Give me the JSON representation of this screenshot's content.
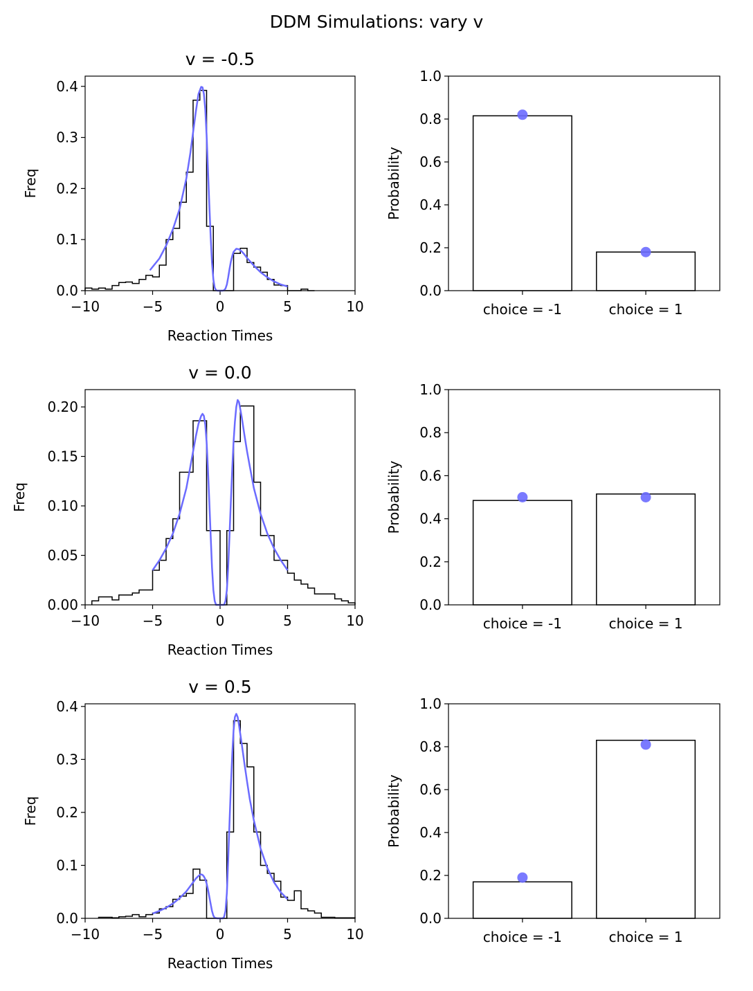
{
  "figure": {
    "title": "DDM Simulations: vary v"
  },
  "chart_data": [
    {
      "type": "histogram",
      "title": "v = -0.5",
      "xlabel": "Reaction Times",
      "ylabel": "Freq",
      "xlim": [
        -10,
        10
      ],
      "ylim": [
        0,
        0.42
      ],
      "xticks": [
        -10,
        -5,
        0,
        5,
        10
      ],
      "yticks": [
        0.0,
        0.1,
        0.2,
        0.3,
        0.4
      ],
      "ytick_labels": [
        "0.0",
        "0.1",
        "0.2",
        "0.3",
        "0.4"
      ],
      "histogram": {
        "edges": [
          -10.0,
          -9.5,
          -9.0,
          -8.5,
          -8.0,
          -7.5,
          -7.0,
          -6.5,
          -6.0,
          -5.5,
          -5.0,
          -4.5,
          -4.0,
          -3.5,
          -3.0,
          -2.5,
          -2.0,
          -1.5,
          -1.0,
          -0.5,
          0.0,
          0.5,
          1.0,
          1.5,
          2.0,
          2.5,
          3.0,
          3.5,
          4.0,
          4.5,
          5.0,
          5.5,
          6.0,
          6.5,
          7.0
        ],
        "counts": [
          0.005,
          0.003,
          0.005,
          0.003,
          0.01,
          0.016,
          0.017,
          0.014,
          0.022,
          0.03,
          0.027,
          0.05,
          0.1,
          0.122,
          0.173,
          0.232,
          0.373,
          0.392,
          0.126,
          0.0,
          0.0,
          0.0,
          0.073,
          0.083,
          0.055,
          0.046,
          0.036,
          0.022,
          0.011,
          0.01,
          0.0,
          0.0,
          0.003,
          0.0
        ]
      },
      "density_curve": {
        "x": [
          -5.2,
          -4.5,
          -4.0,
          -3.5,
          -3.0,
          -2.5,
          -2.2,
          -2.0,
          -1.8,
          -1.6,
          -1.4,
          -1.3,
          -1.2,
          -1.1,
          -1.0,
          -0.9,
          -0.8,
          -0.7,
          -0.6,
          -0.5,
          -0.4,
          -0.3,
          -0.2,
          -0.1,
          0.0,
          0.1,
          0.2,
          0.3,
          0.4,
          0.5,
          0.6,
          0.7,
          0.8,
          0.9,
          1.0,
          1.2,
          1.4,
          1.6,
          1.8,
          2.0,
          2.5,
          3.0,
          3.5,
          4.0,
          4.5,
          5.0
        ],
        "y": [
          0.04,
          0.063,
          0.088,
          0.12,
          0.16,
          0.22,
          0.27,
          0.31,
          0.35,
          0.385,
          0.399,
          0.398,
          0.385,
          0.355,
          0.305,
          0.24,
          0.17,
          0.105,
          0.055,
          0.022,
          0.006,
          0.001,
          0.0,
          0.0,
          0.0,
          0.0,
          0.0,
          0.001,
          0.004,
          0.012,
          0.026,
          0.042,
          0.057,
          0.068,
          0.076,
          0.082,
          0.081,
          0.077,
          0.071,
          0.064,
          0.049,
          0.036,
          0.026,
          0.018,
          0.012,
          0.008
        ]
      },
      "curve_color": "#6b6bff"
    },
    {
      "type": "bar",
      "xlabel": "",
      "ylabel": "Probability",
      "ylim": [
        0,
        1.0
      ],
      "yticks": [
        0.0,
        0.2,
        0.4,
        0.6,
        0.8,
        1.0
      ],
      "ytick_labels": [
        "0.0",
        "0.2",
        "0.4",
        "0.6",
        "0.8",
        "1.0"
      ],
      "categories": [
        "choice = -1",
        "choice = 1"
      ],
      "values": [
        0.815,
        0.18
      ],
      "points": [
        0.82,
        0.18
      ],
      "point_color": "#6b6bff"
    },
    {
      "type": "histogram",
      "title": "v = 0.0",
      "xlabel": "Reaction Times",
      "ylabel": "Freq",
      "xlim": [
        -10,
        10
      ],
      "ylim": [
        0,
        0.2175
      ],
      "xticks": [
        -10,
        -5,
        0,
        5,
        10
      ],
      "yticks": [
        0.0,
        0.05,
        0.1,
        0.15,
        0.2
      ],
      "ytick_labels": [
        "0.00",
        "0.05",
        "0.10",
        "0.15",
        "0.20"
      ],
      "histogram": {
        "edges": [
          -9.5,
          -9.0,
          -8.5,
          -8.0,
          -7.5,
          -7.0,
          -6.5,
          -6.0,
          -5.5,
          -5.0,
          -4.5,
          -4.0,
          -3.5,
          -3.0,
          -2.5,
          -2.0,
          -1.5,
          -1.0,
          -0.5,
          0.0,
          0.5,
          1.0,
          1.5,
          2.0,
          2.5,
          3.0,
          3.5,
          4.0,
          4.5,
          5.0,
          5.5,
          6.0,
          6.5,
          7.0,
          7.5,
          8.0,
          8.5,
          9.0,
          9.5,
          10.0
        ],
        "counts": [
          0.004,
          0.008,
          0.008,
          0.005,
          0.01,
          0.01,
          0.012,
          0.015,
          0.015,
          0.035,
          0.045,
          0.067,
          0.087,
          0.134,
          0.134,
          0.186,
          0.186,
          0.075,
          0.075,
          0.0,
          0.075,
          0.165,
          0.201,
          0.201,
          0.124,
          0.07,
          0.07,
          0.045,
          0.045,
          0.032,
          0.025,
          0.021,
          0.017,
          0.011,
          0.011,
          0.011,
          0.006,
          0.004,
          0.002
        ]
      },
      "density_curve": {
        "x": [
          -5.0,
          -4.5,
          -4.0,
          -3.5,
          -3.0,
          -2.5,
          -2.2,
          -2.0,
          -1.8,
          -1.6,
          -1.4,
          -1.3,
          -1.2,
          -1.1,
          -1.0,
          -0.9,
          -0.8,
          -0.7,
          -0.6,
          -0.5,
          -0.4,
          -0.3,
          -0.2,
          0.0,
          0.2,
          0.3,
          0.4,
          0.5,
          0.6,
          0.7,
          0.8,
          0.9,
          1.0,
          1.1,
          1.2,
          1.3,
          1.4,
          1.6,
          1.8,
          2.0,
          2.2,
          2.5,
          3.0,
          3.5,
          4.0,
          4.5,
          5.0
        ],
        "y": [
          0.035,
          0.045,
          0.057,
          0.072,
          0.092,
          0.118,
          0.14,
          0.155,
          0.17,
          0.183,
          0.191,
          0.193,
          0.191,
          0.182,
          0.165,
          0.138,
          0.105,
          0.07,
          0.038,
          0.015,
          0.004,
          0.0,
          0.0,
          0.0,
          0.0,
          0.0,
          0.004,
          0.015,
          0.038,
          0.07,
          0.105,
          0.138,
          0.165,
          0.185,
          0.2,
          0.207,
          0.205,
          0.19,
          0.172,
          0.155,
          0.14,
          0.118,
          0.092,
          0.072,
          0.057,
          0.045,
          0.035
        ]
      },
      "curve_color": "#6b6bff"
    },
    {
      "type": "bar",
      "xlabel": "",
      "ylabel": "Probability",
      "ylim": [
        0,
        1.0
      ],
      "yticks": [
        0.0,
        0.2,
        0.4,
        0.6,
        0.8,
        1.0
      ],
      "ytick_labels": [
        "0.0",
        "0.2",
        "0.4",
        "0.6",
        "0.8",
        "1.0"
      ],
      "categories": [
        "choice = -1",
        "choice = 1"
      ],
      "values": [
        0.485,
        0.515
      ],
      "points": [
        0.5,
        0.5
      ],
      "point_color": "#6b6bff"
    },
    {
      "type": "histogram",
      "title": "v = 0.5",
      "xlabel": "Reaction Times",
      "ylabel": "Freq",
      "xlim": [
        -10,
        10
      ],
      "ylim": [
        0,
        0.405
      ],
      "xticks": [
        -10,
        -5,
        0,
        5,
        10
      ],
      "yticks": [
        0.0,
        0.1,
        0.2,
        0.3,
        0.4
      ],
      "ytick_labels": [
        "0.0",
        "0.1",
        "0.2",
        "0.3",
        "0.4"
      ],
      "histogram": {
        "edges": [
          -9.0,
          -8.5,
          -8.0,
          -7.5,
          -7.0,
          -6.5,
          -6.0,
          -5.5,
          -5.0,
          -4.5,
          -4.0,
          -3.5,
          -3.0,
          -2.5,
          -2.0,
          -1.5,
          -1.0,
          -0.5,
          0.0,
          0.5,
          1.0,
          1.5,
          2.0,
          2.5,
          3.0,
          3.5,
          4.0,
          4.5,
          5.0,
          5.5,
          6.0,
          6.5,
          7.0,
          7.5,
          8.0,
          8.5,
          9.0,
          9.5,
          10.0
        ],
        "counts": [
          0.002,
          0.002,
          0.001,
          0.003,
          0.004,
          0.007,
          0.003,
          0.007,
          0.01,
          0.018,
          0.022,
          0.036,
          0.042,
          0.047,
          0.093,
          0.072,
          0.0,
          0.0,
          0.0,
          0.163,
          0.373,
          0.33,
          0.286,
          0.163,
          0.1,
          0.085,
          0.07,
          0.04,
          0.034,
          0.052,
          0.018,
          0.014,
          0.01,
          0.002,
          0.002,
          0.001,
          0.001,
          0.001
        ]
      },
      "density_curve": {
        "x": [
          -5.0,
          -4.5,
          -4.0,
          -3.5,
          -3.0,
          -2.5,
          -2.2,
          -2.0,
          -1.8,
          -1.6,
          -1.5,
          -1.4,
          -1.3,
          -1.2,
          -1.1,
          -1.0,
          -0.9,
          -0.8,
          -0.7,
          -0.6,
          -0.5,
          -0.4,
          -0.2,
          0.0,
          0.2,
          0.3,
          0.4,
          0.5,
          0.6,
          0.7,
          0.8,
          0.9,
          1.0,
          1.1,
          1.2,
          1.3,
          1.4,
          1.6,
          1.8,
          2.0,
          2.2,
          2.5,
          3.0,
          3.5,
          4.0,
          4.5,
          5.0
        ],
        "y": [
          0.009,
          0.014,
          0.02,
          0.028,
          0.038,
          0.051,
          0.061,
          0.068,
          0.075,
          0.08,
          0.082,
          0.083,
          0.082,
          0.079,
          0.074,
          0.066,
          0.055,
          0.041,
          0.027,
          0.014,
          0.005,
          0.001,
          0.0,
          0.0,
          0.0,
          0.003,
          0.014,
          0.048,
          0.11,
          0.18,
          0.25,
          0.31,
          0.355,
          0.38,
          0.386,
          0.38,
          0.365,
          0.33,
          0.293,
          0.258,
          0.225,
          0.185,
          0.132,
          0.095,
          0.068,
          0.049,
          0.036
        ]
      },
      "curve_color": "#6b6bff"
    },
    {
      "type": "bar",
      "xlabel": "",
      "ylabel": "Probability",
      "ylim": [
        0,
        1.0
      ],
      "yticks": [
        0.0,
        0.2,
        0.4,
        0.6,
        0.8,
        1.0
      ],
      "ytick_labels": [
        "0.0",
        "0.2",
        "0.4",
        "0.6",
        "0.8",
        "1.0"
      ],
      "categories": [
        "choice = -1",
        "choice = 1"
      ],
      "values": [
        0.17,
        0.83
      ],
      "points": [
        0.19,
        0.81
      ],
      "point_color": "#6b6bff"
    }
  ]
}
